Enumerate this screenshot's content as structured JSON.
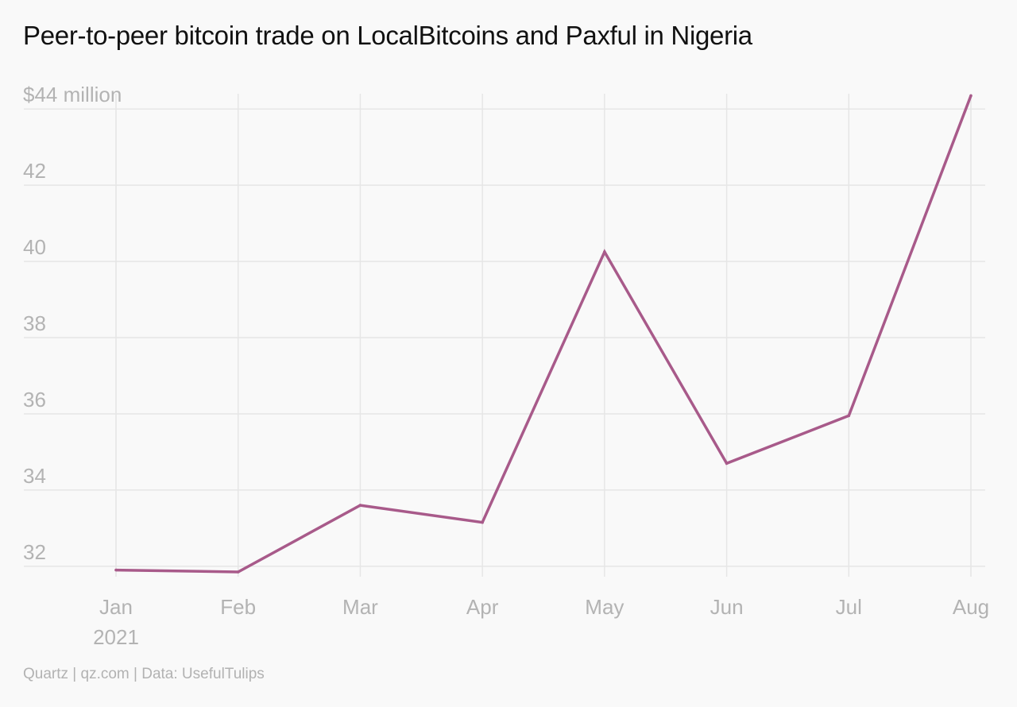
{
  "title": "Peer-to-peer bitcoin trade on LocalBitcoins and Paxful in Nigeria",
  "footer": "Quartz | qz.com | Data: UsefulTulips",
  "chart_data": {
    "type": "line",
    "title": "Peer-to-peer bitcoin trade on LocalBitcoins and Paxful in Nigeria",
    "xlabel": "",
    "ylabel": "",
    "categories": [
      "Jan",
      "Feb",
      "Mar",
      "Apr",
      "May",
      "Jun",
      "Jul",
      "Aug"
    ],
    "category_sublabels": [
      "2021",
      "",
      "",
      "",
      "",
      "",
      "",
      ""
    ],
    "series": [
      {
        "values": [
          31.9,
          31.85,
          33.6,
          33.15,
          40.25,
          34.7,
          35.95,
          44.35
        ],
        "color": "#a85a8a"
      }
    ],
    "ylim": [
      31.6,
      44.4
    ],
    "yticks": [
      32,
      34,
      36,
      38,
      40,
      42,
      44
    ],
    "ytick_labels": [
      "32",
      "34",
      "36",
      "38",
      "40",
      "42",
      "$44 million"
    ],
    "grid": true,
    "legend": "none",
    "grid_color": "#e6e6e6",
    "text_color": "#b3b3b3"
  }
}
